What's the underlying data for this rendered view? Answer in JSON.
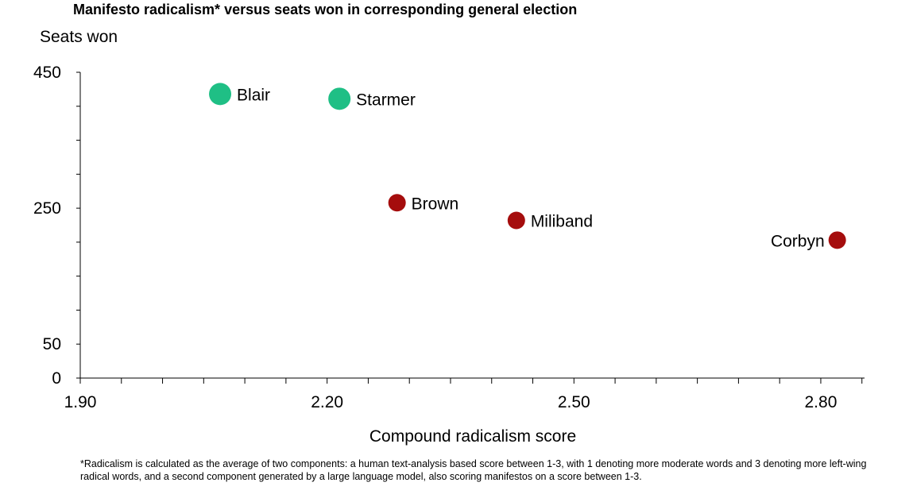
{
  "chart_data": {
    "type": "scatter",
    "title": "Manifesto radicalism* versus seats won in corresponding general election",
    "xlabel": "Compound radicalism score",
    "ylabel": "Seats won",
    "xlim": [
      1.9,
      2.85
    ],
    "ylim": [
      0,
      450
    ],
    "x_ticks": [
      "1.90",
      "2.20",
      "2.50",
      "2.80"
    ],
    "y_ticks": [
      "450",
      "250",
      "50",
      "0"
    ],
    "legend": "none",
    "grid": false,
    "points": [
      {
        "label": "Blair",
        "x": 2.07,
        "y": 418,
        "color": "#1fbf85"
      },
      {
        "label": "Starmer",
        "x": 2.215,
        "y": 411,
        "color": "#1fbf85"
      },
      {
        "label": "Brown",
        "x": 2.285,
        "y": 258,
        "color": "#a50d0d"
      },
      {
        "label": "Miliband",
        "x": 2.43,
        "y": 232,
        "color": "#a50d0d"
      },
      {
        "label": "Corbyn",
        "x": 2.82,
        "y": 203,
        "color": "#a50d0d"
      }
    ]
  },
  "footnote": "*Radicalism is calculated as the average of two components: a human text-analysis based score between 1-3, with 1 denoting more moderate words and 3 denoting more left-wing radical words, and a second component generated by a large language model, also scoring manifestos on a score between 1-3."
}
